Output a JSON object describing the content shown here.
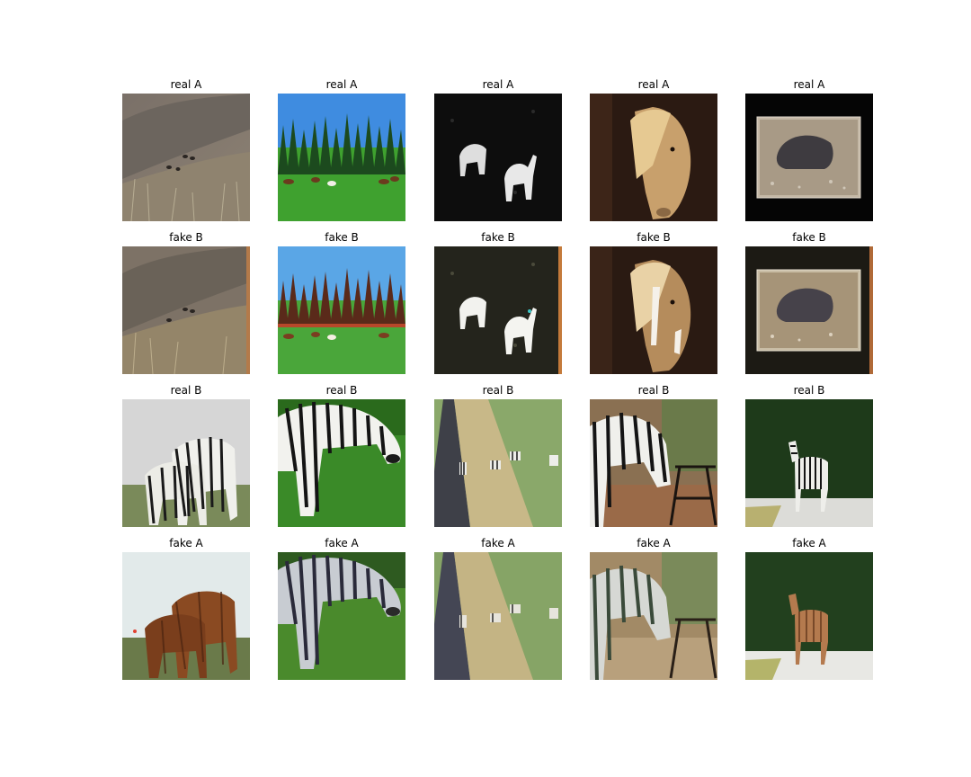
{
  "figure": {
    "rows": [
      {
        "cells": [
          {
            "title": "real A",
            "image": "hillside-grazing-horses"
          },
          {
            "title": "real A",
            "image": "horses-in-green-meadow-with-pine-trees"
          },
          {
            "title": "real A",
            "image": "two-white-horses-at-night"
          },
          {
            "title": "real A",
            "image": "palomino-horse-portrait"
          },
          {
            "title": "real A",
            "image": "framed-photo-horse-rolling-in-dust"
          }
        ]
      },
      {
        "cells": [
          {
            "title": "fake B",
            "image": "hillside-grazing-horses-translated"
          },
          {
            "title": "fake B",
            "image": "meadow-horses-translated"
          },
          {
            "title": "fake B",
            "image": "white-horses-night-translated"
          },
          {
            "title": "fake B",
            "image": "palomino-portrait-translated"
          },
          {
            "title": "fake B",
            "image": "framed-horse-translated"
          }
        ]
      },
      {
        "cells": [
          {
            "title": "real B",
            "image": "zebra-herd-closeup"
          },
          {
            "title": "real B",
            "image": "zebra-grazing-grass"
          },
          {
            "title": "real B",
            "image": "zebras-beside-road"
          },
          {
            "title": "real B",
            "image": "zebra-at-wooden-feeder"
          },
          {
            "title": "real B",
            "image": "zebra-standing-on-path"
          }
        ]
      },
      {
        "cells": [
          {
            "title": "fake A",
            "image": "zebra-herd-translated-to-horses"
          },
          {
            "title": "fake A",
            "image": "grazing-zebra-translated"
          },
          {
            "title": "fake A",
            "image": "road-zebras-translated"
          },
          {
            "title": "fake A",
            "image": "feeder-zebra-translated"
          },
          {
            "title": "fake A",
            "image": "path-zebra-translated-to-brown"
          }
        ]
      }
    ]
  }
}
